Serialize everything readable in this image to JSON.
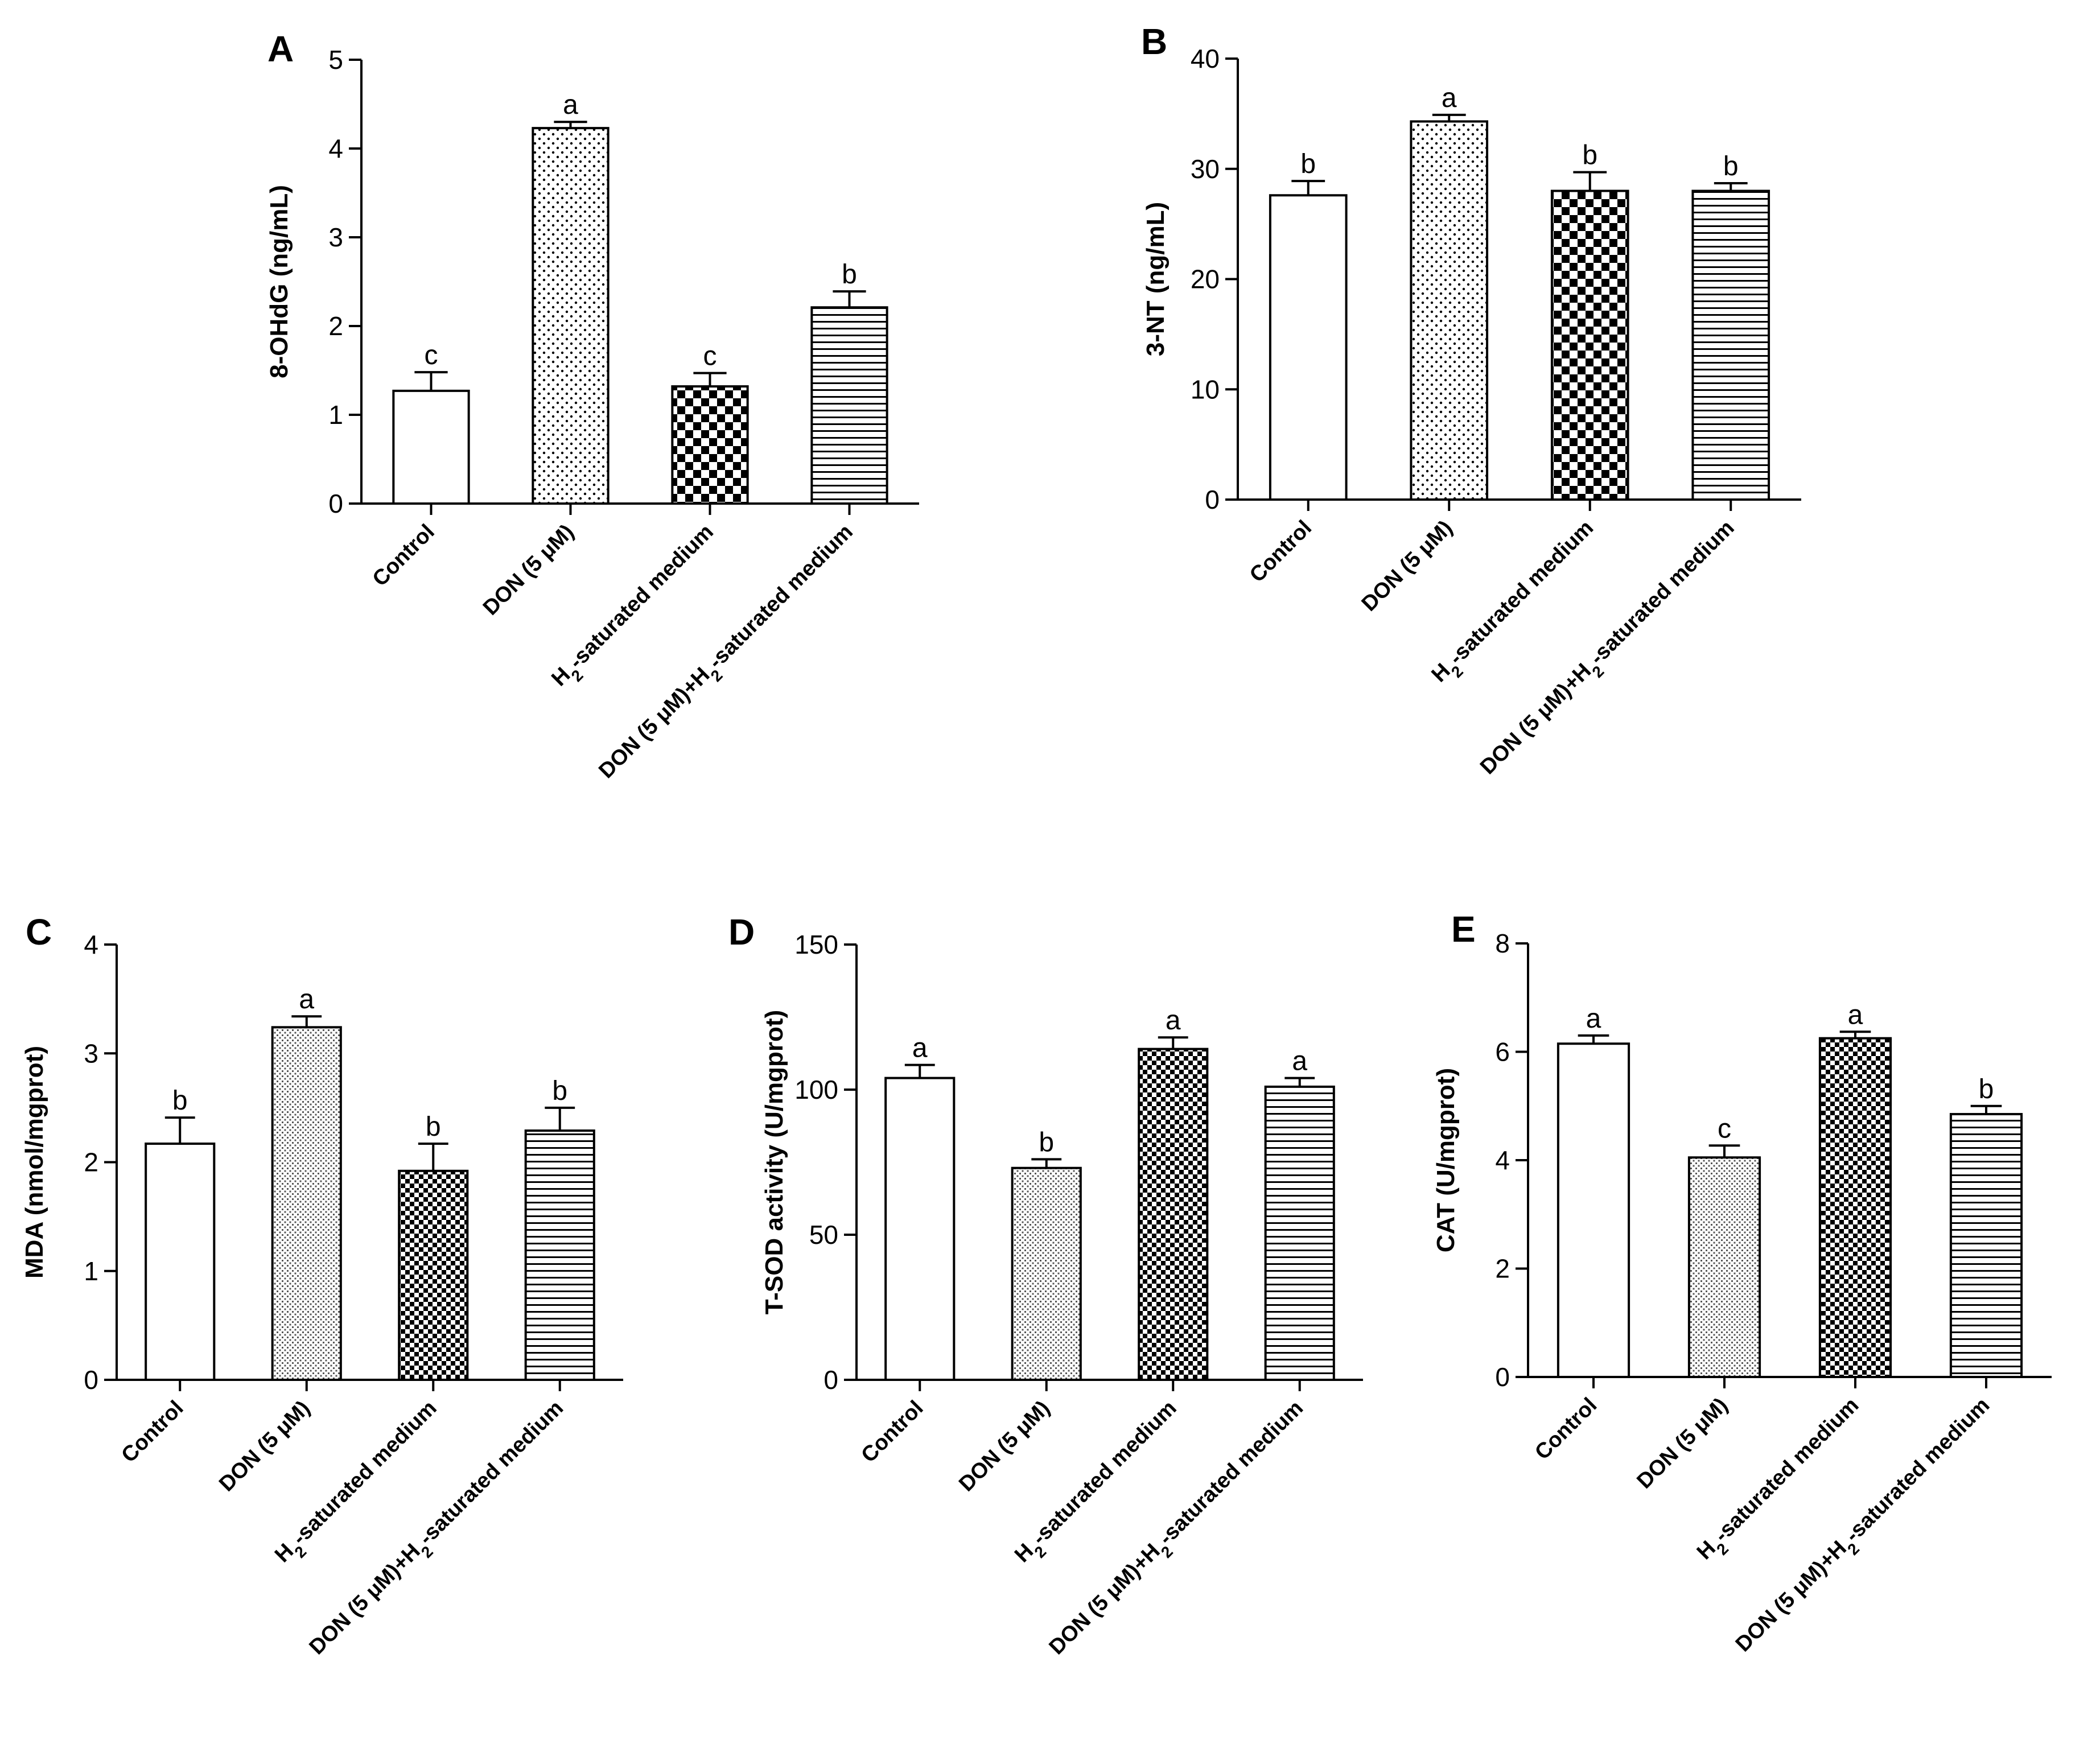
{
  "figure": {
    "panels": [
      "A",
      "B",
      "C",
      "D",
      "E"
    ]
  },
  "colors": {
    "axis": "#000000",
    "bar_fill_base": "#ffffff",
    "pattern_ink": "#000000"
  },
  "chart_data": [
    {
      "panel": "A",
      "type": "bar",
      "title": "",
      "xlabel": "",
      "ylabel": "8-OHdG (ng/mL)",
      "ylim": [
        0,
        5
      ],
      "yticks": [
        0,
        1,
        2,
        3,
        4,
        5
      ],
      "categories": [
        "Control",
        "DON (5 μM)",
        "H2-saturated medium",
        "DON (5 μM)+H2-saturated medium"
      ],
      "patterns": [
        "plain",
        "dots",
        "checker",
        "hlines"
      ],
      "values": [
        1.27,
        4.23,
        1.32,
        2.21
      ],
      "errors": [
        0.21,
        0.07,
        0.15,
        0.18
      ],
      "significance": [
        "c",
        "a",
        "c",
        "b"
      ]
    },
    {
      "panel": "B",
      "type": "bar",
      "title": "",
      "xlabel": "",
      "ylabel": "3-NT (ng/mL)",
      "ylim": [
        0,
        40
      ],
      "yticks": [
        0,
        10,
        20,
        30,
        40
      ],
      "categories": [
        "Control",
        "DON (5 μM)",
        "H2-saturated medium",
        "DON (5 μM)+H2-saturated medium"
      ],
      "patterns": [
        "plain",
        "dots",
        "checker",
        "hlines"
      ],
      "values": [
        27.6,
        34.3,
        28.0,
        28.0
      ],
      "errors": [
        1.3,
        0.6,
        1.7,
        0.7
      ],
      "significance": [
        "b",
        "a",
        "b",
        "b"
      ]
    },
    {
      "panel": "C",
      "type": "bar",
      "title": "",
      "xlabel": "",
      "ylabel": "MDA (nmol/mgprot)",
      "ylim": [
        0,
        4
      ],
      "yticks": [
        0,
        1,
        2,
        3,
        4
      ],
      "categories": [
        "Control",
        "DON (5 μM)",
        "H2-saturated medium",
        "DON (5 μM)+H2-saturated medium"
      ],
      "patterns": [
        "plain",
        "finedots",
        "finechecker",
        "hlines"
      ],
      "values": [
        2.17,
        3.24,
        1.92,
        2.29
      ],
      "errors": [
        0.24,
        0.1,
        0.25,
        0.21
      ],
      "significance": [
        "b",
        "a",
        "b",
        "b"
      ]
    },
    {
      "panel": "D",
      "type": "bar",
      "title": "",
      "xlabel": "",
      "ylabel": "T-SOD activity (U/mgprot)",
      "ylim": [
        0,
        150
      ],
      "yticks": [
        0,
        50,
        100,
        150
      ],
      "categories": [
        "Control",
        "DON (5 μM)",
        "H2-saturated medium",
        "DON (5 μM)+H2-saturated medium"
      ],
      "patterns": [
        "plain",
        "finedots",
        "finechecker",
        "hlines"
      ],
      "values": [
        104,
        73,
        114,
        101
      ],
      "errors": [
        4.5,
        3,
        4,
        3
      ],
      "significance": [
        "a",
        "b",
        "a",
        "a"
      ]
    },
    {
      "panel": "E",
      "type": "bar",
      "title": "",
      "xlabel": "",
      "ylabel": "CAT (U/mgprot)",
      "ylim": [
        0,
        8
      ],
      "yticks": [
        0,
        2,
        4,
        6,
        8
      ],
      "categories": [
        "Control",
        "DON (5 μM)",
        "H2-saturated medium",
        "DON (5 μM)+H2-saturated medium"
      ],
      "patterns": [
        "plain",
        "finedots",
        "finechecker",
        "hlines"
      ],
      "values": [
        6.15,
        4.05,
        6.25,
        4.85
      ],
      "errors": [
        0.15,
        0.22,
        0.12,
        0.15
      ],
      "significance": [
        "a",
        "c",
        "a",
        "b"
      ]
    }
  ]
}
